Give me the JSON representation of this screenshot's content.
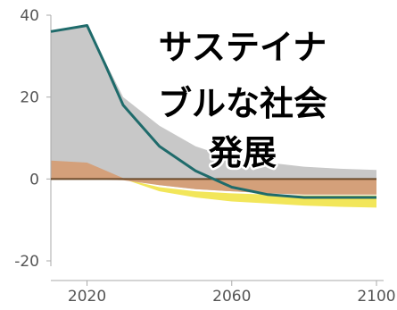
{
  "chart_data": {
    "type": "area",
    "title": "",
    "xlabel": "",
    "ylabel": "",
    "xlim": [
      2010,
      2100
    ],
    "ylim": [
      -20,
      40
    ],
    "x_ticks": [
      2020,
      2060,
      2100
    ],
    "y_ticks": [
      40,
      20,
      0,
      -20
    ],
    "grid": false,
    "legend": "none",
    "overlay_text_lines": [
      "サステイナ",
      "ブルな社会",
      "発展"
    ],
    "colors": {
      "gray_band": "#c8c8c8",
      "brown_band": "#d4a07a",
      "yellow_band": "#f2e65a",
      "line": "#1f6b6b",
      "zero_line": "#6b4a2a",
      "axis": "#aaaaaa"
    },
    "gray_band": {
      "x": [
        2010,
        2020,
        2030,
        2040,
        2050,
        2060,
        2070,
        2080,
        2090,
        2100
      ],
      "upper": [
        36,
        37.5,
        20,
        13,
        8,
        5,
        4,
        3,
        2.5,
        2.2
      ],
      "lower": [
        4,
        3,
        0,
        -1.5,
        -2.5,
        -3,
        -3.5,
        -3.8,
        -3.8,
        -3.8
      ]
    },
    "brown_band": {
      "x": [
        2010,
        2020,
        2030,
        2040,
        2050,
        2060,
        2070,
        2080,
        2090,
        2100
      ],
      "upper": [
        4.5,
        4,
        0.2,
        0,
        0,
        0,
        0,
        0,
        0,
        0
      ],
      "lower": [
        0,
        0,
        -0.3,
        -1.5,
        -2.5,
        -3,
        -3.5,
        -3.8,
        -3.8,
        -3.8
      ]
    },
    "yellow_band": {
      "x": [
        2030,
        2040,
        2050,
        2060,
        2070,
        2080,
        2090,
        2100
      ],
      "upper": [
        0,
        -2,
        -3,
        -3.5,
        -3.8,
        -4,
        -4,
        -4
      ],
      "lower": [
        0,
        -3,
        -4.5,
        -5.5,
        -6,
        -6.5,
        -6.8,
        -7
      ]
    },
    "series": [
      {
        "x": [
          2010,
          2020,
          2025,
          2030,
          2040,
          2050,
          2060,
          2070,
          2080,
          2090,
          2100
        ],
        "values": [
          36,
          37.5,
          28,
          18,
          8,
          2,
          -2,
          -3.8,
          -4.5,
          -4.5,
          -4.5
        ]
      }
    ]
  }
}
